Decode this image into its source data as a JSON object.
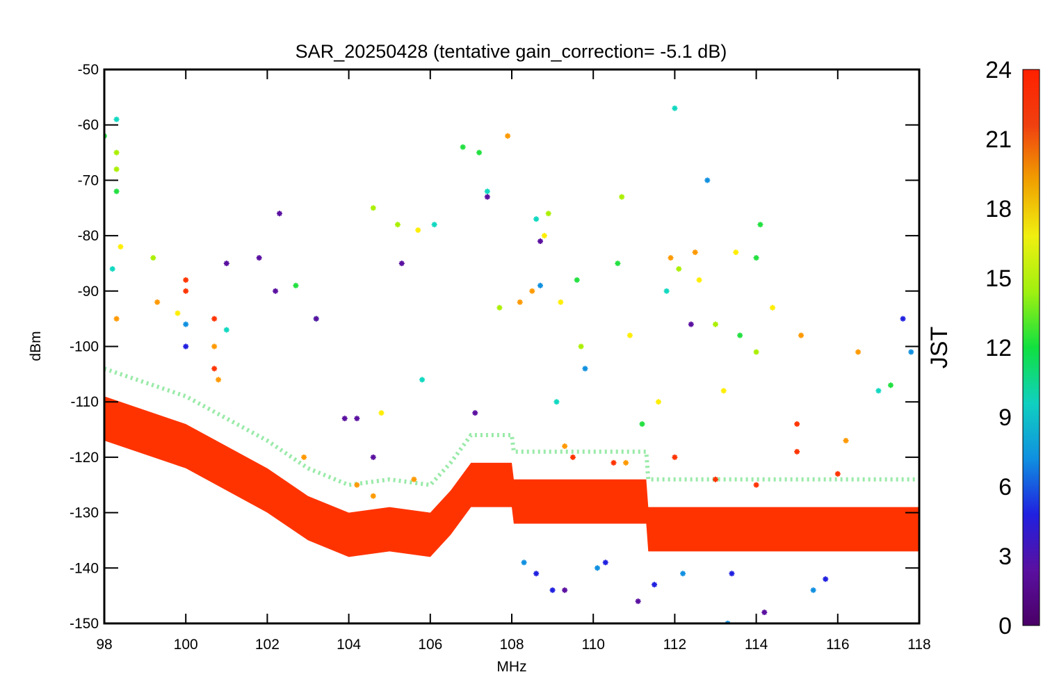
{
  "chart_data": {
    "type": "scatter",
    "title": "SAR_20250428 (tentative gain_correction= -5.1 dB)",
    "xlabel": "MHz",
    "ylabel": "dBm",
    "xlim": [
      98,
      118
    ],
    "ylim": [
      -150,
      -50
    ],
    "xticks": [
      "98",
      "100",
      "102",
      "104",
      "106",
      "108",
      "110",
      "112",
      "114",
      "116",
      "118"
    ],
    "yticks": [
      "-50",
      "-60",
      "-70",
      "-80",
      "-90",
      "-100",
      "-110",
      "-120",
      "-130",
      "-140",
      "-150"
    ],
    "grid": false,
    "marker": "asterisk",
    "colorbar": {
      "label": "JST",
      "range": [
        0,
        24
      ],
      "ticks": [
        "24",
        "21",
        "18",
        "15",
        "12",
        "9",
        "6",
        "3",
        "0"
      ],
      "colormap": "rainbow",
      "stops": [
        "#4a0066",
        "#5a10a0",
        "#2020e0",
        "#1090e0",
        "#10d0c0",
        "#10e040",
        "#a0f010",
        "#f0f010",
        "#f0a000",
        "#f04010",
        "#ff2000"
      ]
    },
    "noise_floor": [
      {
        "x": 98,
        "y": -113
      },
      {
        "x": 100,
        "y": -118
      },
      {
        "x": 102,
        "y": -126
      },
      {
        "x": 103,
        "y": -131
      },
      {
        "x": 104,
        "y": -134
      },
      {
        "x": 105,
        "y": -133
      },
      {
        "x": 106,
        "y": -134
      },
      {
        "x": 106.5,
        "y": -130
      },
      {
        "x": 107,
        "y": -125
      },
      {
        "x": 108,
        "y": -125
      },
      {
        "x": 108.05,
        "y": -128
      },
      {
        "x": 110,
        "y": -128
      },
      {
        "x": 111.3,
        "y": -128
      },
      {
        "x": 111.35,
        "y": -133
      },
      {
        "x": 118,
        "y": -133
      }
    ],
    "series": [
      {
        "color": "#ff3300",
        "points": [
          [
            100,
            -88
          ],
          [
            100,
            -90
          ],
          [
            100.7,
            -95
          ],
          [
            100.7,
            -104
          ],
          [
            115,
            -114
          ],
          [
            115,
            -119
          ],
          [
            109.5,
            -120
          ],
          [
            110.5,
            -121
          ],
          [
            112,
            -120
          ],
          [
            113,
            -124
          ],
          [
            114,
            -125
          ],
          [
            116,
            -123
          ]
        ]
      },
      {
        "color": "#ff9900",
        "points": [
          [
            98.3,
            -95
          ],
          [
            99.3,
            -92
          ],
          [
            100.7,
            -100
          ],
          [
            100.8,
            -106
          ],
          [
            107.9,
            -62
          ],
          [
            108.5,
            -90
          ],
          [
            111.9,
            -84
          ],
          [
            112.5,
            -83
          ],
          [
            108.2,
            -92
          ],
          [
            104.2,
            -125
          ],
          [
            104.6,
            -127
          ],
          [
            116.5,
            -101
          ],
          [
            115.1,
            -98
          ],
          [
            110.8,
            -121
          ],
          [
            109.3,
            -118
          ],
          [
            102.9,
            -120
          ],
          [
            105.6,
            -124
          ],
          [
            116.2,
            -117
          ]
        ]
      },
      {
        "color": "#ffee00",
        "points": [
          [
            98.4,
            -82
          ],
          [
            99.8,
            -94
          ],
          [
            108.8,
            -80
          ],
          [
            113.5,
            -83
          ],
          [
            112.6,
            -88
          ],
          [
            114.4,
            -93
          ],
          [
            110.9,
            -98
          ],
          [
            105.7,
            -79
          ],
          [
            109.2,
            -92
          ],
          [
            104.8,
            -112
          ],
          [
            111.6,
            -110
          ],
          [
            113.2,
            -108
          ]
        ]
      },
      {
        "color": "#aaf000",
        "points": [
          [
            98.3,
            -65
          ],
          [
            98.3,
            -68
          ],
          [
            99.2,
            -84
          ],
          [
            108.9,
            -76
          ],
          [
            110.7,
            -73
          ],
          [
            104.6,
            -75
          ],
          [
            105.2,
            -78
          ],
          [
            112.1,
            -86
          ],
          [
            109.7,
            -100
          ],
          [
            113.0,
            -96
          ],
          [
            114.0,
            -101
          ],
          [
            107.7,
            -93
          ]
        ]
      },
      {
        "color": "#22e040",
        "points": [
          [
            98.0,
            -62
          ],
          [
            98.3,
            -72
          ],
          [
            106.8,
            -64
          ],
          [
            107.2,
            -65
          ],
          [
            114.1,
            -78
          ],
          [
            114.0,
            -84
          ],
          [
            102.7,
            -89
          ],
          [
            110.6,
            -85
          ],
          [
            109.6,
            -88
          ],
          [
            113.6,
            -98
          ],
          [
            111.2,
            -114
          ],
          [
            117.3,
            -107
          ]
        ]
      },
      {
        "color": "#10d8c0",
        "points": [
          [
            98.3,
            -59
          ],
          [
            98.2,
            -86
          ],
          [
            112.0,
            -57
          ],
          [
            107.4,
            -72
          ],
          [
            106.1,
            -78
          ],
          [
            108.6,
            -77
          ],
          [
            111.8,
            -90
          ],
          [
            103.2,
            -95
          ],
          [
            101.0,
            -97
          ],
          [
            105.8,
            -106
          ],
          [
            117.0,
            -108
          ],
          [
            109.1,
            -110
          ]
        ]
      },
      {
        "color": "#1090e0",
        "points": [
          [
            100,
            -96
          ],
          [
            112.8,
            -70
          ],
          [
            108.7,
            -89
          ],
          [
            109.8,
            -104
          ],
          [
            117.8,
            -101
          ],
          [
            113.3,
            -150
          ],
          [
            110.1,
            -140
          ],
          [
            112.2,
            -141
          ],
          [
            115.4,
            -144
          ],
          [
            108.3,
            -139
          ]
        ]
      },
      {
        "color": "#2020e0",
        "points": [
          [
            100,
            -100
          ],
          [
            117.6,
            -95
          ],
          [
            113.4,
            -141
          ],
          [
            111.5,
            -143
          ],
          [
            110.3,
            -139
          ],
          [
            108.6,
            -141
          ],
          [
            109.0,
            -144
          ],
          [
            115.7,
            -142
          ]
        ]
      },
      {
        "color": "#5a10a0",
        "points": [
          [
            102.3,
            -76
          ],
          [
            101.0,
            -85
          ],
          [
            101.8,
            -84
          ],
          [
            107.4,
            -73
          ],
          [
            108.7,
            -81
          ],
          [
            105.3,
            -85
          ],
          [
            102.2,
            -90
          ],
          [
            103.2,
            -95
          ],
          [
            112.4,
            -96
          ],
          [
            114.2,
            -148
          ],
          [
            111.1,
            -146
          ],
          [
            109.3,
            -144
          ],
          [
            104.2,
            -113
          ],
          [
            104.6,
            -120
          ],
          [
            103.9,
            -113
          ],
          [
            107.1,
            -112
          ]
        ]
      }
    ]
  }
}
